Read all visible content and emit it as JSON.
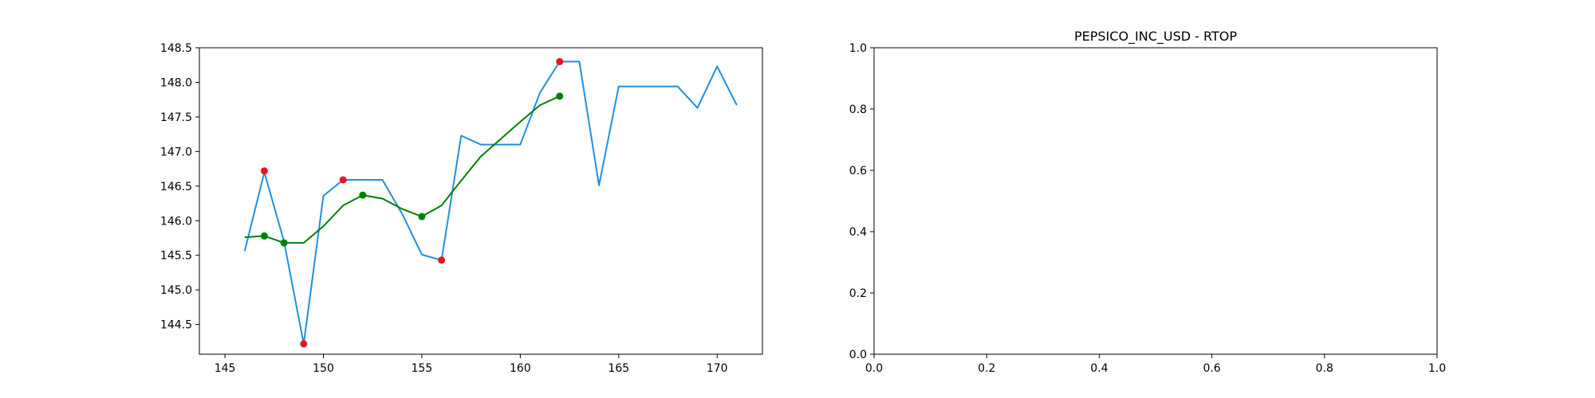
{
  "chart_data": [
    {
      "type": "line",
      "title": "",
      "xlabel": "",
      "ylabel": "",
      "xlim": [
        143.7,
        172.3
      ],
      "ylim": [
        144.07,
        148.5
      ],
      "x_ticks": [
        145,
        150,
        155,
        160,
        165,
        170
      ],
      "y_ticks": [
        144.5,
        145.0,
        145.5,
        146.0,
        146.5,
        147.0,
        147.5,
        148.0,
        148.5
      ],
      "grid": false,
      "series": [
        {
          "color": "#1f8fe0",
          "x": [
            146,
            147,
            148,
            149,
            150,
            151,
            152,
            153,
            154,
            155,
            156,
            157,
            158,
            159,
            160,
            161,
            162,
            163,
            164,
            165,
            166,
            167,
            168,
            169,
            170,
            171
          ],
          "y": [
            145.56,
            146.7,
            145.7,
            144.22,
            146.36,
            146.59,
            146.59,
            146.59,
            146.1,
            145.51,
            145.43,
            147.23,
            147.1,
            147.1,
            147.1,
            147.85,
            148.3,
            148.3,
            146.51,
            147.94,
            147.94,
            147.94,
            147.94,
            147.63,
            148.23,
            147.67
          ]
        },
        {
          "color": "#008000",
          "x": [
            146,
            147,
            148,
            149,
            150,
            151,
            152,
            153,
            154,
            155,
            156,
            157,
            158,
            159,
            160,
            161,
            162
          ],
          "y": [
            145.76,
            145.78,
            145.68,
            145.68,
            145.92,
            146.22,
            146.37,
            146.32,
            146.17,
            146.06,
            146.22,
            146.58,
            146.93,
            147.18,
            147.43,
            147.67,
            147.8
          ]
        }
      ],
      "markers": [
        {
          "color": "#e8141e",
          "x": [
            147,
            149,
            151,
            156,
            162
          ],
          "y": [
            146.72,
            144.22,
            146.59,
            145.43,
            148.3
          ]
        },
        {
          "color": "#008000",
          "x": [
            147,
            148,
            152,
            155,
            162
          ],
          "y": [
            145.78,
            145.68,
            146.37,
            146.06,
            147.8
          ]
        }
      ]
    },
    {
      "type": "line",
      "title": "PEPSICO_INC_USD - RTOP",
      "xlabel": "",
      "ylabel": "",
      "xlim": [
        0,
        1
      ],
      "ylim": [
        0,
        1
      ],
      "x_ticks": [
        "0.0",
        "0.2",
        "0.4",
        "0.6",
        "0.8",
        "1.0"
      ],
      "y_ticks": [
        "0.0",
        "0.2",
        "0.4",
        "0.6",
        "0.8",
        "1.0"
      ],
      "grid": false,
      "series": []
    }
  ]
}
